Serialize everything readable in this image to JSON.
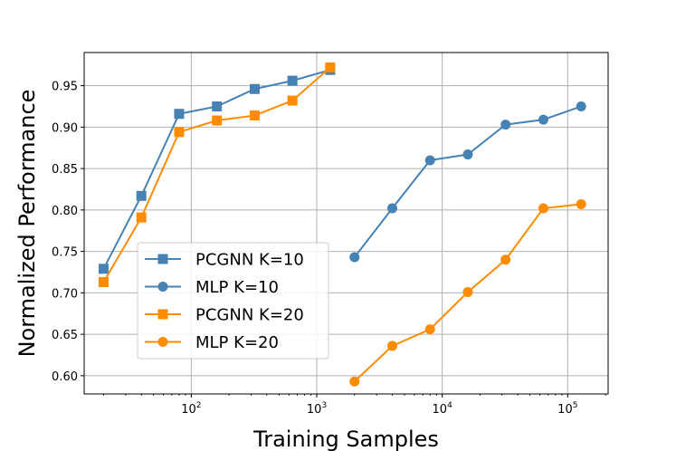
{
  "chart_data": {
    "type": "line",
    "xscale": "log",
    "xlabel": "Training Samples",
    "ylabel": "Normalized Performance",
    "xlim": [
      14,
      210000
    ],
    "ylim": [
      0.578,
      0.99
    ],
    "grid": true,
    "legend_position": "lower-left (inside axes)",
    "x_ticks": [
      {
        "value": 100,
        "base": "10",
        "exp": "2"
      },
      {
        "value": 1000,
        "base": "10",
        "exp": "3"
      },
      {
        "value": 10000,
        "base": "10",
        "exp": "4"
      },
      {
        "value": 100000,
        "base": "10",
        "exp": "5"
      }
    ],
    "y_ticks": [
      {
        "value": 0.6,
        "label": "0.60"
      },
      {
        "value": 0.65,
        "label": "0.65"
      },
      {
        "value": 0.7,
        "label": "0.70"
      },
      {
        "value": 0.75,
        "label": "0.75"
      },
      {
        "value": 0.8,
        "label": "0.80"
      },
      {
        "value": 0.85,
        "label": "0.85"
      },
      {
        "value": 0.9,
        "label": "0.90"
      },
      {
        "value": 0.95,
        "label": "0.95"
      }
    ],
    "series": [
      {
        "name": "PCGNN K=10",
        "color": "#4682b4",
        "marker": "square",
        "x": [
          20,
          40,
          80,
          160,
          320,
          640,
          1280
        ],
        "y": [
          0.729,
          0.817,
          0.916,
          0.925,
          0.946,
          0.956,
          0.969
        ]
      },
      {
        "name": "MLP K=10",
        "color": "#4682b4",
        "marker": "circle",
        "x": [
          2000,
          4000,
          8000,
          16000,
          32000,
          64000,
          128000
        ],
        "y": [
          0.743,
          0.802,
          0.86,
          0.867,
          0.903,
          0.909,
          0.925
        ]
      },
      {
        "name": "PCGNN K=20",
        "color": "#ff8c00",
        "marker": "square",
        "x": [
          20,
          40,
          80,
          160,
          320,
          640,
          1280
        ],
        "y": [
          0.713,
          0.791,
          0.894,
          0.908,
          0.914,
          0.932,
          0.972
        ]
      },
      {
        "name": "MLP K=20",
        "color": "#ff8c00",
        "marker": "circle",
        "x": [
          2000,
          4000,
          8000,
          16000,
          32000,
          64000,
          128000
        ],
        "y": [
          0.593,
          0.636,
          0.656,
          0.701,
          0.74,
          0.802,
          0.807
        ]
      }
    ]
  }
}
